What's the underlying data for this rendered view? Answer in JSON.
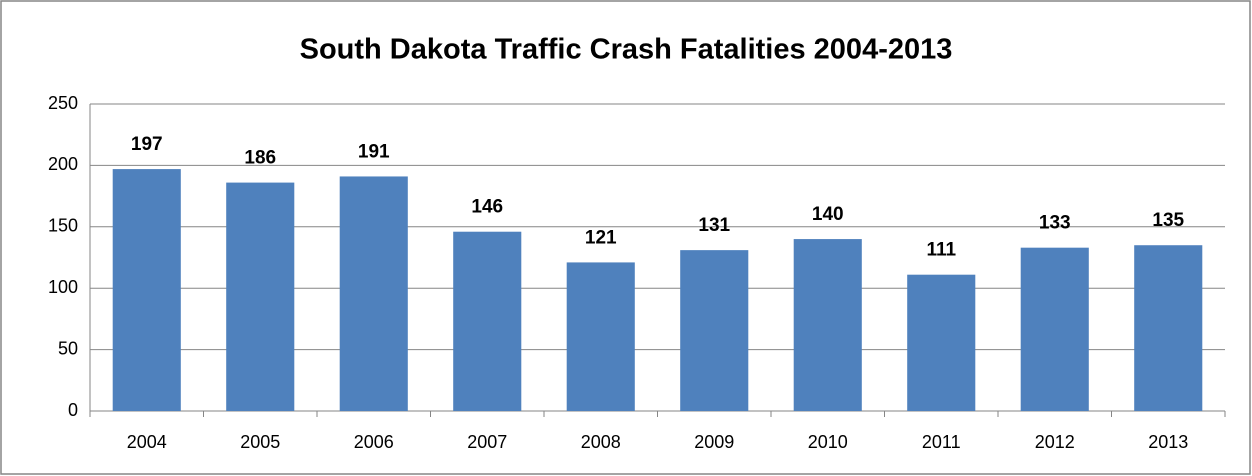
{
  "chart_data": {
    "type": "bar",
    "title": "South Dakota Traffic Crash Fatalities 2004-2013",
    "categories": [
      "2004",
      "2005",
      "2006",
      "2007",
      "2008",
      "2009",
      "2010",
      "2011",
      "2012",
      "2013"
    ],
    "values": [
      197,
      186,
      191,
      146,
      121,
      131,
      140,
      111,
      133,
      135
    ],
    "color": "#4f81bd",
    "ylim": [
      0,
      250
    ],
    "yticks": [
      0,
      50,
      100,
      150,
      200,
      250
    ],
    "grid": true
  }
}
